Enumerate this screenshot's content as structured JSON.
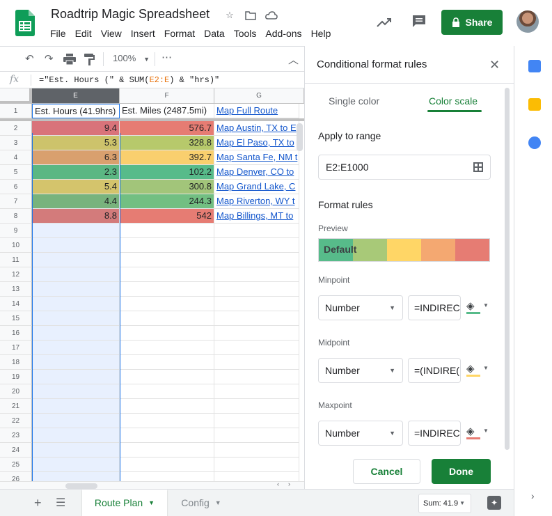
{
  "header": {
    "title": "Roadtrip Magic Spreadsheet",
    "menu": [
      "File",
      "Edit",
      "View",
      "Insert",
      "Format",
      "Data",
      "Tools",
      "Add-ons",
      "Help"
    ],
    "share_label": "Share"
  },
  "toolbar": {
    "zoom": "100%"
  },
  "formula_bar": {
    "fx": "fx",
    "prefix": "=\"Est. Hours (\" & SUM(",
    "ref": "E2:E",
    "suffix": ") & \"hrs)\""
  },
  "grid": {
    "columns": [
      "E",
      "F",
      "G"
    ],
    "header_row": {
      "num": "1",
      "e": "Est. Hours (41.9hrs)",
      "f": "Est. Miles (2487.5mi)",
      "g": "Map Full Route"
    },
    "rows": [
      {
        "num": "2",
        "e": "9.4",
        "f": "576.7",
        "g": "Map Austin, TX to E",
        "e_color": "#d9737a",
        "f_color": "#e67c73"
      },
      {
        "num": "3",
        "e": "5.3",
        "f": "328.8",
        "g": "Map El Paso, TX to",
        "e_color": "#cdc36b",
        "f_color": "#b7c96b"
      },
      {
        "num": "4",
        "e": "6.3",
        "f": "392.7",
        "g": "Map Santa Fe, NM t",
        "e_color": "#d9a06e",
        "f_color": "#f9cf6e"
      },
      {
        "num": "5",
        "e": "2.3",
        "f": "102.2",
        "g": "Map Denver, CO to",
        "e_color": "#5bb783",
        "f_color": "#57bb8a"
      },
      {
        "num": "6",
        "e": "5.4",
        "f": "300.8",
        "g": "Map Grand Lake, C",
        "e_color": "#d4c46c",
        "f_color": "#a2c57a"
      },
      {
        "num": "7",
        "e": "4.4",
        "f": "244.3",
        "g": "Map Riverton, WY t",
        "e_color": "#78b37d",
        "f_color": "#72bf82"
      },
      {
        "num": "8",
        "e": "8.8",
        "f": "542",
        "g": "Map Billings, MT to",
        "e_color": "#d37b7b",
        "f_color": "#e67c73"
      }
    ],
    "empty_rows": [
      "9",
      "10",
      "11",
      "12",
      "13",
      "14",
      "15",
      "16",
      "17",
      "18",
      "19",
      "20",
      "21",
      "22",
      "23",
      "24",
      "25",
      "26"
    ]
  },
  "sheets": {
    "active": "Route Plan",
    "inactive": "Config",
    "sum": "Sum: 41.9"
  },
  "panel": {
    "title": "Conditional format rules",
    "tab_single": "Single color",
    "tab_scale": "Color scale",
    "apply_label": "Apply to range",
    "range": "E2:E1000",
    "format_rules": "Format rules",
    "preview_label": "Preview",
    "preview_text": "Default",
    "preview_colors": [
      "#57bb8a",
      "#a8c978",
      "#ffd666",
      "#f4a871",
      "#e67c73"
    ],
    "minpoint": {
      "label": "Minpoint",
      "type": "Number",
      "value": "=INDIREC",
      "color": "#57bb8a"
    },
    "midpoint": {
      "label": "Midpoint",
      "type": "Number",
      "value": "=(INDIRE(",
      "color": "#ffd666"
    },
    "maxpoint": {
      "label": "Maxpoint",
      "type": "Number",
      "value": "=INDIREC",
      "color": "#e67c73"
    },
    "cancel": "Cancel",
    "done": "Done"
  }
}
